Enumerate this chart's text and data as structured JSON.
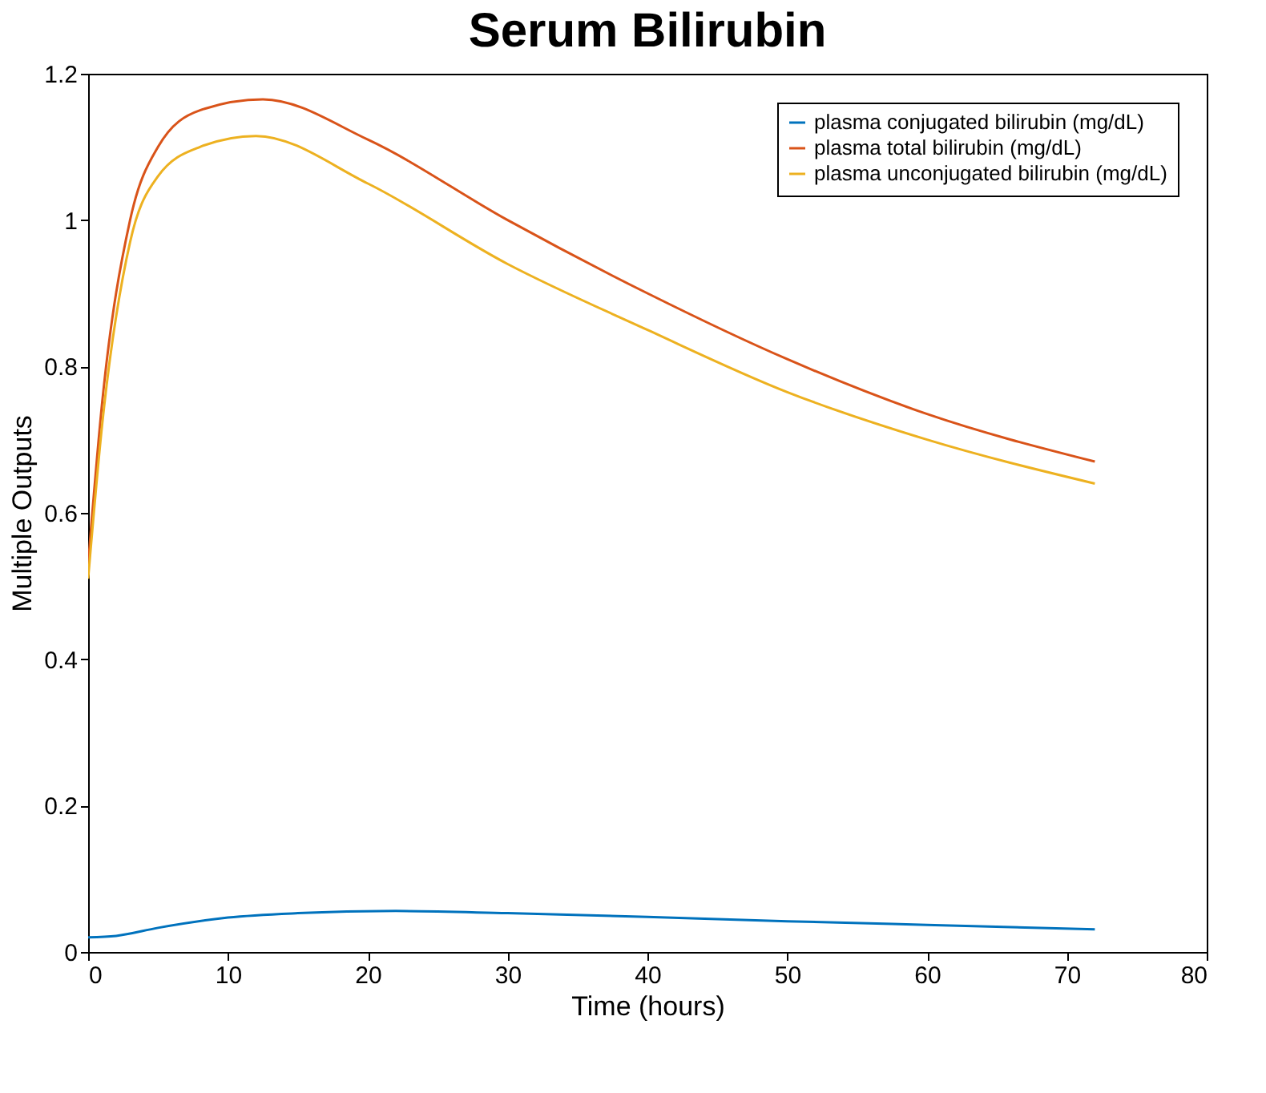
{
  "chart_data": {
    "type": "line",
    "title": "Serum Bilirubin",
    "xlabel": "Time (hours)",
    "ylabel": "Multiple Outputs",
    "xlim": [
      0,
      80
    ],
    "xticks": [
      0,
      10,
      20,
      30,
      40,
      50,
      60,
      70,
      80
    ],
    "ylim": [
      0,
      1.2
    ],
    "yticks": [
      0,
      0.2,
      0.4,
      0.6,
      0.8,
      1,
      1.2
    ],
    "grid": false,
    "legend": "top right",
    "line_style": "solid",
    "series": [
      {
        "name": "plasma conjugated bilirubin (mg/dL)",
        "color": "#0072bd",
        "x": [
          0,
          2,
          5,
          10,
          15,
          22,
          30,
          40,
          50,
          60,
          72
        ],
        "values": [
          0.02,
          0.022,
          0.033,
          0.047,
          0.053,
          0.056,
          0.053,
          0.048,
          0.042,
          0.037,
          0.031
        ]
      },
      {
        "name": "plasma total bilirubin (mg/dL)",
        "color": "#d95319",
        "x": [
          0,
          1,
          3,
          5,
          8,
          12.5,
          20,
          30,
          40,
          50,
          60,
          72
        ],
        "values": [
          0.53,
          0.75,
          1.0,
          1.1,
          1.15,
          1.165,
          1.11,
          1.0,
          0.9,
          0.81,
          0.735,
          0.67
        ]
      },
      {
        "name": "plasma unconjugated bilirubin (mg/dL)",
        "color": "#edb120",
        "x": [
          0,
          1,
          3,
          5,
          8,
          12,
          20,
          30,
          40,
          50,
          60,
          72
        ],
        "values": [
          0.51,
          0.72,
          0.97,
          1.06,
          1.1,
          1.115,
          1.05,
          0.94,
          0.85,
          0.765,
          0.7,
          0.64
        ]
      }
    ]
  }
}
